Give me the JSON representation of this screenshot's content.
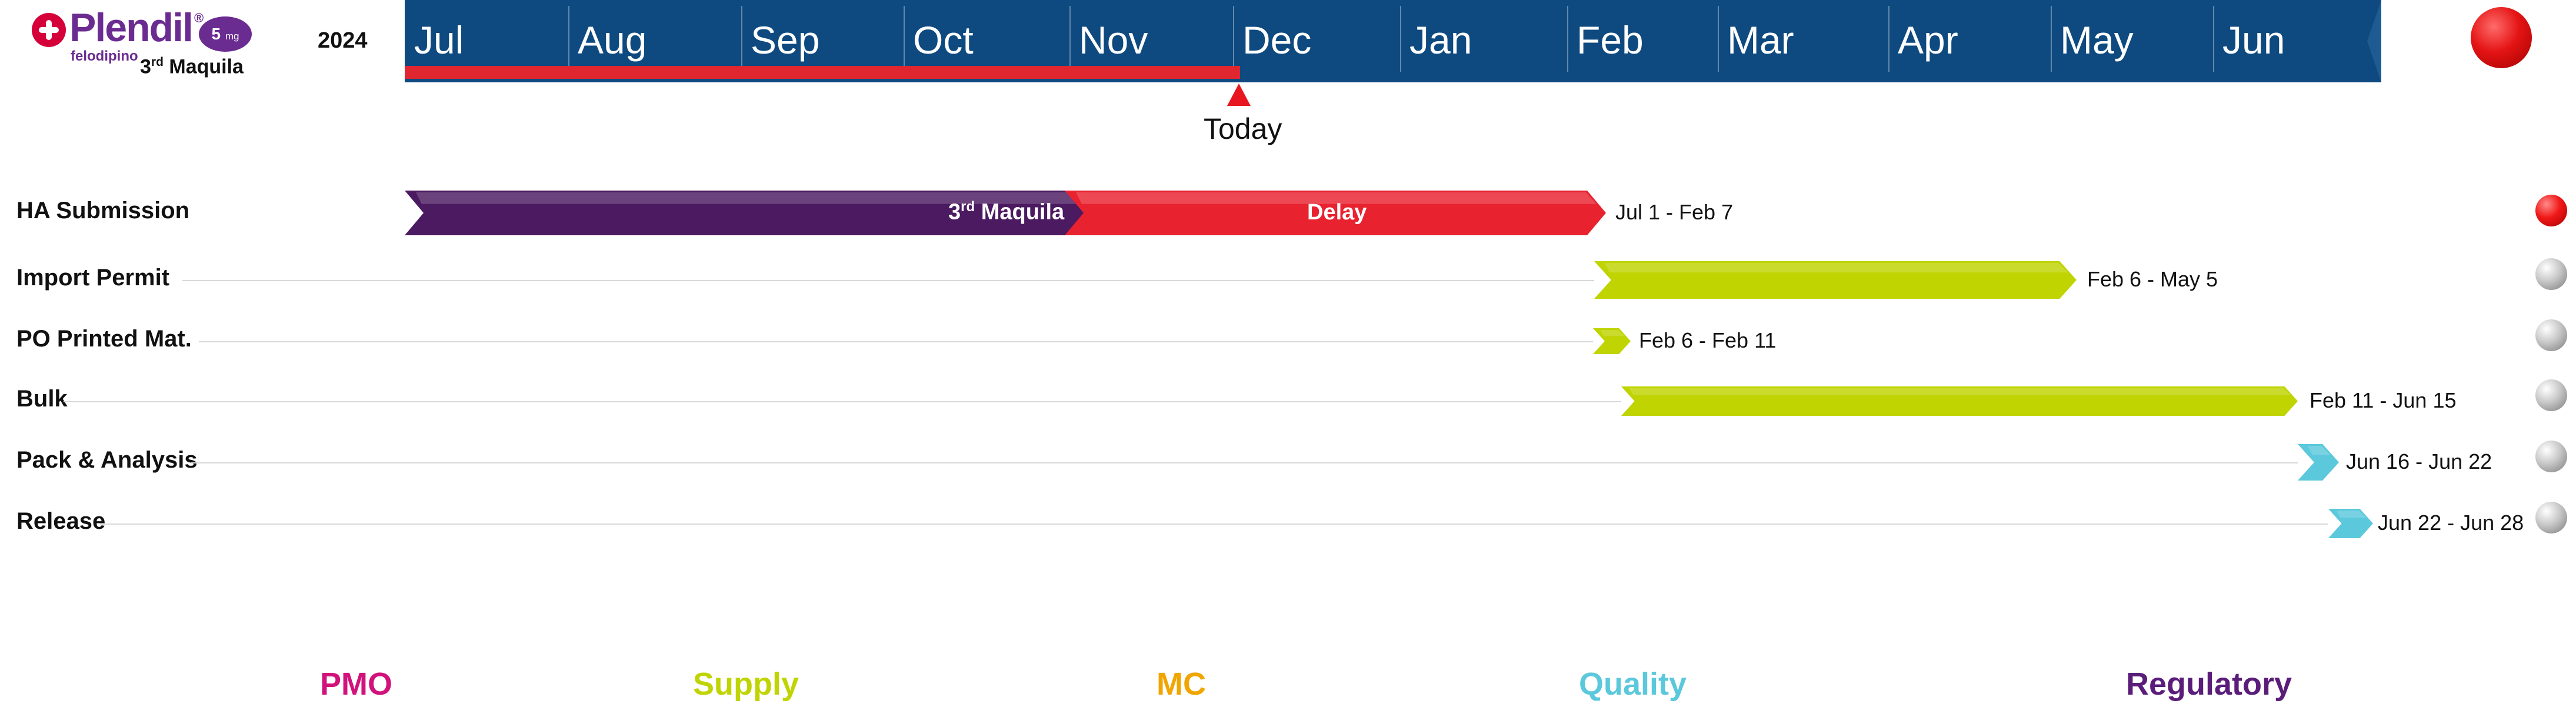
{
  "header": {
    "brand": "Plendil",
    "brand_mark": "®",
    "dose": "5",
    "dose_unit": "mg",
    "generic": "felodipino",
    "subtitle_prefix": "3",
    "subtitle_sup": "rd",
    "subtitle_suffix": " Maquila",
    "year": "2024",
    "today_label": "Today",
    "overall_status_color": "#e41414"
  },
  "months": [
    "Jul",
    "Aug",
    "Sep",
    "Oct",
    "Nov",
    "Dec",
    "Jan",
    "Feb",
    "Mar",
    "Apr",
    "May",
    "Jun"
  ],
  "tasks": [
    {
      "label": "HA Submission",
      "dates": "Jul 1 - Feb 7",
      "status": "red",
      "bar_color": "#4b1a60",
      "segments": [
        {
          "text_prefix": "3",
          "text_sup": "rd",
          "text_suffix": " Maquila",
          "color": "#4b1a60"
        },
        {
          "text": "Delay",
          "color": "#e8222f"
        }
      ]
    },
    {
      "label": "Import Permit",
      "dates": "Feb 6 - May 5",
      "status": "grey",
      "bar_color": "#bfd400"
    },
    {
      "label": "PO Printed Mat.",
      "dates": "Feb 6 - Feb 11",
      "status": "grey",
      "bar_color": "#bfd400"
    },
    {
      "label": "Bulk",
      "dates": "Feb 11 - Jun 15",
      "status": "grey",
      "bar_color": "#bfd400"
    },
    {
      "label": "Pack & Analysis",
      "dates": "Jun 16 - Jun 22",
      "status": "grey",
      "bar_color": "#5bc8dc"
    },
    {
      "label": "Release",
      "dates": "Jun 22 - Jun 28",
      "status": "grey",
      "bar_color": "#5bc8dc"
    }
  ],
  "legend": [
    {
      "label": "PMO",
      "color": "#d1127a"
    },
    {
      "label": "Supply",
      "color": "#bfd400"
    },
    {
      "label": "MC",
      "color": "#f0a500"
    },
    {
      "label": "Quality",
      "color": "#5bc8dc"
    },
    {
      "label": "Regulatory",
      "color": "#5a1d7a"
    }
  ]
}
